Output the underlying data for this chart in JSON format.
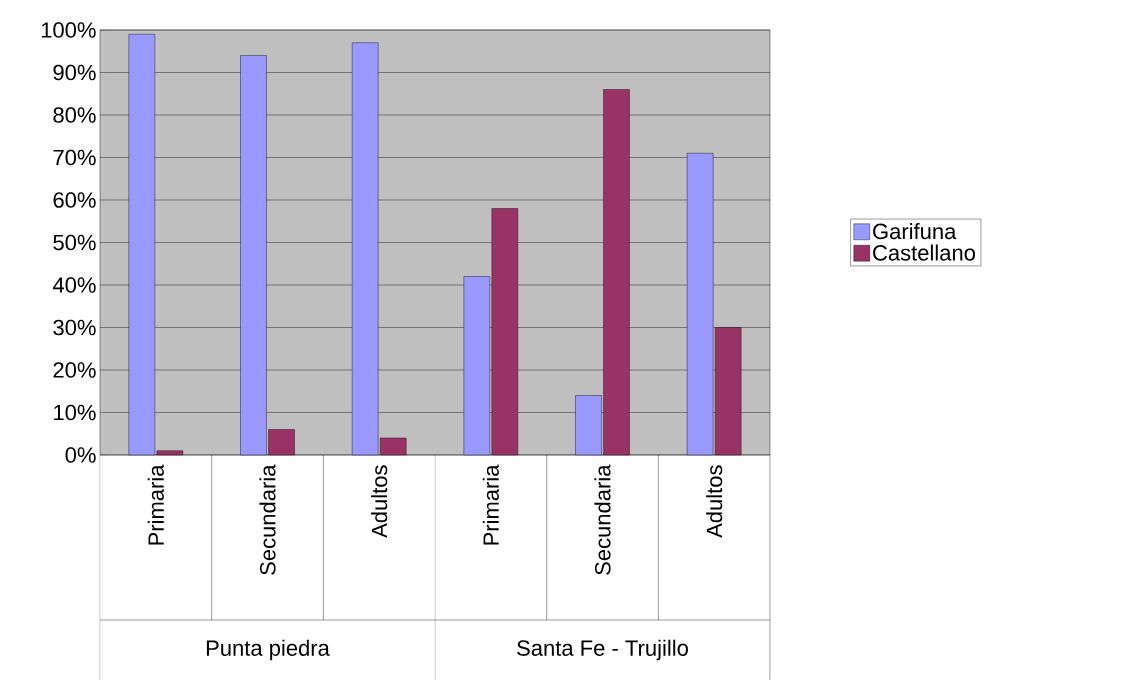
{
  "chart_data": {
    "type": "bar",
    "categories": [
      "Primaria",
      "Secundaria",
      "Adultos",
      "Primaria",
      "Secundaria",
      "Adultos"
    ],
    "series": [
      {
        "name": "Garifuna",
        "color": "#9999ff",
        "values": [
          99,
          94,
          97,
          42,
          14,
          71
        ]
      },
      {
        "name": "Castellano",
        "color": "#993366",
        "values": [
          1,
          6,
          4,
          58,
          86,
          30
        ]
      }
    ],
    "ylim": [
      0,
      100
    ],
    "yticks": [
      {
        "value": 0,
        "label": "0%"
      },
      {
        "value": 10,
        "label": "10%"
      },
      {
        "value": 20,
        "label": "20%"
      },
      {
        "value": 30,
        "label": "30%"
      },
      {
        "value": 40,
        "label": "40%"
      },
      {
        "value": 50,
        "label": "50%"
      },
      {
        "value": 60,
        "label": "60%"
      },
      {
        "value": 70,
        "label": "70%"
      },
      {
        "value": 80,
        "label": "80%"
      },
      {
        "value": 90,
        "label": "90%"
      },
      {
        "value": 100,
        "label": "100%"
      }
    ],
    "grid": "y",
    "legend": "right",
    "annotations": [
      "Punta piedra",
      "Santa Fe - Trujillo"
    ]
  }
}
